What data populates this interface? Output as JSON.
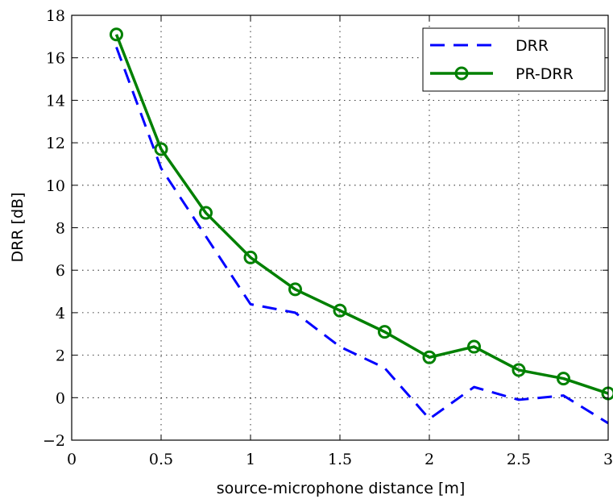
{
  "chart_data": {
    "type": "line",
    "xlabel": "source-microphone distance [m]",
    "ylabel": "DRR [dB]",
    "xlim": [
      0,
      3
    ],
    "ylim": [
      -2,
      18
    ],
    "grid": true,
    "legend_position": "top-right",
    "x_ticks": [
      0,
      0.5,
      1,
      1.5,
      2,
      2.5,
      3
    ],
    "y_ticks": [
      -2,
      0,
      2,
      4,
      6,
      8,
      10,
      12,
      14,
      16,
      18
    ],
    "x_tick_labels": [
      "0",
      "0.5",
      "1",
      "1.5",
      "2",
      "2.5",
      "3"
    ],
    "y_tick_labels": [
      "−2",
      "0",
      "2",
      "4",
      "6",
      "8",
      "10",
      "12",
      "14",
      "16",
      "18"
    ],
    "x": [
      0.25,
      0.5,
      0.75,
      1.0,
      1.25,
      1.5,
      1.75,
      2.0,
      2.25,
      2.5,
      2.75,
      3.0
    ],
    "series": [
      {
        "name": "DRR",
        "color": "#0000ff",
        "style": "dashed",
        "marker": "none",
        "values": [
          16.5,
          10.8,
          7.6,
          4.4,
          4.0,
          2.4,
          1.4,
          -1.0,
          0.5,
          -0.1,
          0.1,
          -1.2
        ]
      },
      {
        "name": "PR-DRR",
        "color": "#008000",
        "style": "solid",
        "marker": "circle",
        "values": [
          17.1,
          11.7,
          8.7,
          6.6,
          5.1,
          4.1,
          3.1,
          1.9,
          2.4,
          1.3,
          0.9,
          0.2
        ]
      }
    ]
  }
}
